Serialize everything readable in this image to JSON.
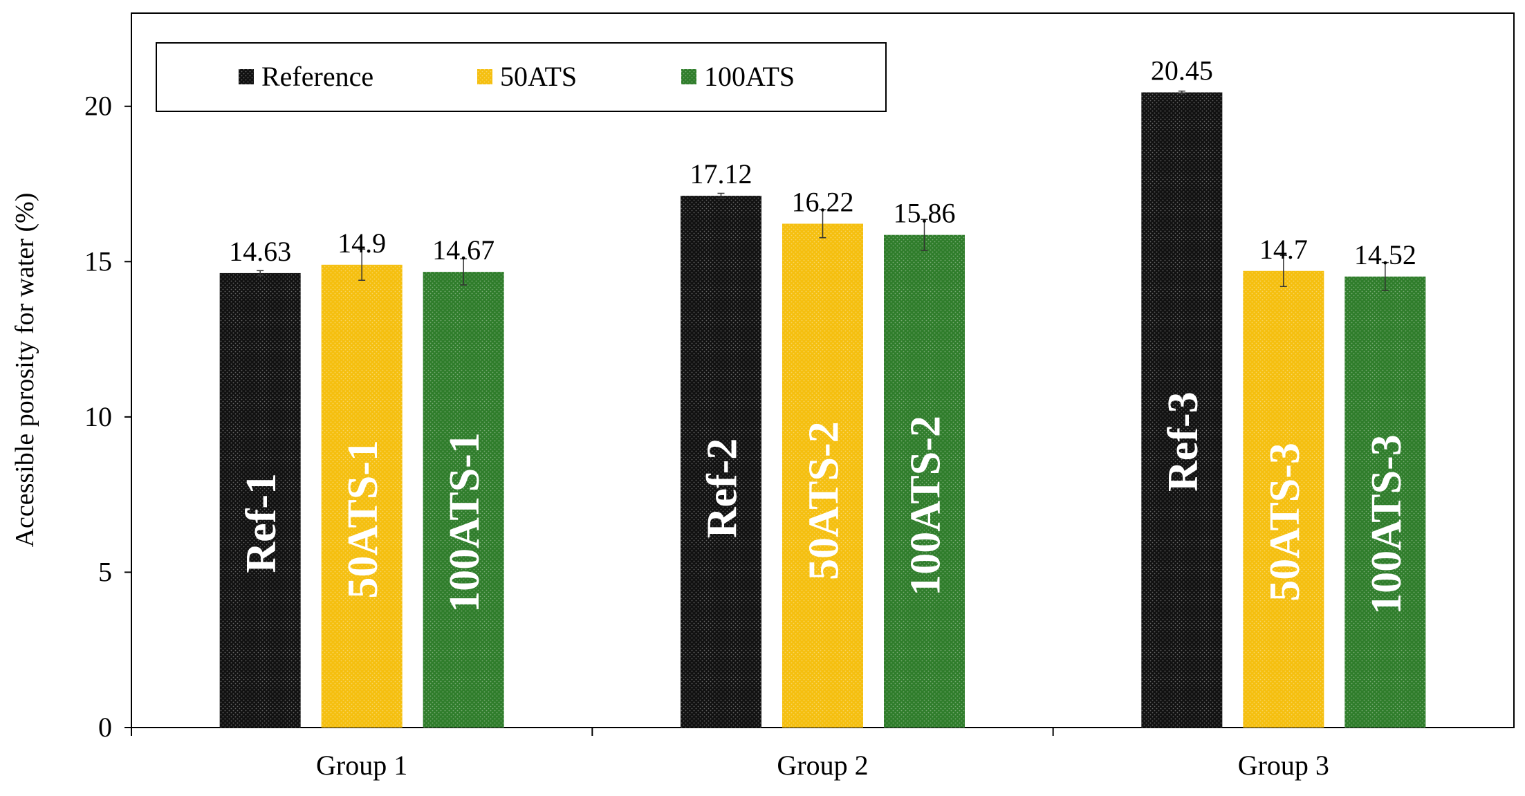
{
  "chart_data": {
    "type": "bar",
    "title": "",
    "xlabel": "",
    "ylabel": "Accessible porosity for water (%)",
    "ylim": [
      0,
      23
    ],
    "yticks": [
      0,
      5,
      10,
      15,
      20
    ],
    "categories": [
      "Group 1",
      "Group 2",
      "Group 3"
    ],
    "grid": false,
    "legend_position": "top-left",
    "series": [
      {
        "name": "Reference",
        "color": "#111111",
        "values": [
          14.63,
          17.12,
          20.45
        ],
        "labels": [
          "14.63",
          "17.12",
          "20.45"
        ],
        "bar_labels": [
          "Ref-1",
          "Ref-2",
          "Ref-3"
        ],
        "errors": [
          0.08,
          0.08,
          0.04
        ]
      },
      {
        "name": "50ATS",
        "color": "#f5bf0f",
        "values": [
          14.9,
          16.22,
          14.7
        ],
        "labels": [
          "14.9",
          "16.22",
          "14.7"
        ],
        "bar_labels": [
          "50ATS-1",
          "50ATS-2",
          "50ATS-3"
        ],
        "errors": [
          0.5,
          0.45,
          0.5
        ]
      },
      {
        "name": "100ATS",
        "color": "#2f7d2b",
        "values": [
          14.67,
          15.86,
          14.52
        ],
        "labels": [
          "14.67",
          "15.86",
          "14.52"
        ],
        "bar_labels": [
          "100ATS-1",
          "100ATS-2",
          "100ATS-3"
        ],
        "errors": [
          0.42,
          0.5,
          0.45
        ]
      }
    ]
  }
}
